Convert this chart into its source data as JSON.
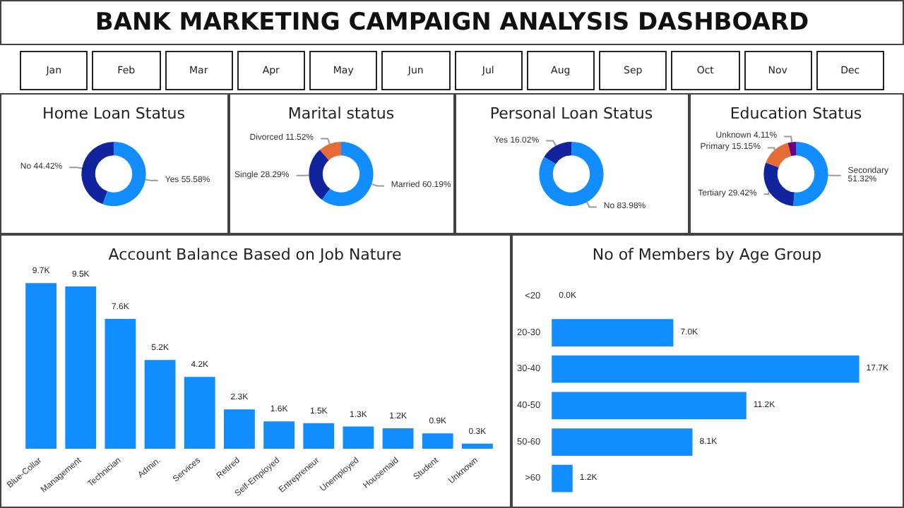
{
  "chart_data": [
    {
      "type": "other",
      "title": "BANK MARKETING CAMPAIGN ANALYSIS DASHBOARD",
      "annotations": [
        "Jan",
        "Feb",
        "Mar",
        "Apr",
        "May",
        "Jun",
        "Jul",
        "Aug",
        "Sep",
        "Oct",
        "Nov",
        "Dec"
      ]
    },
    {
      "type": "donut",
      "title": "Home Loan Status",
      "categories": [
        "Yes",
        "No"
      ],
      "values": [
        55.58,
        44.42
      ],
      "colors": [
        "#118dff",
        "#12239e"
      ],
      "value_labels": [
        "55.58%",
        "44.42%"
      ]
    },
    {
      "type": "donut",
      "title": "Marital status",
      "categories": [
        "Married",
        "Single",
        "Divorced"
      ],
      "values": [
        60.19,
        28.29,
        11.52
      ],
      "colors": [
        "#118dff",
        "#12239e",
        "#e66c37"
      ],
      "value_labels": [
        "60.19%",
        "28.29%",
        "11.52%"
      ]
    },
    {
      "type": "donut",
      "title": "Personal Loan Status",
      "categories": [
        "No",
        "Yes"
      ],
      "values": [
        83.98,
        16.02
      ],
      "colors": [
        "#118dff",
        "#12239e"
      ],
      "value_labels": [
        "83.98%",
        "16.02%"
      ]
    },
    {
      "type": "donut",
      "title": "Education Status",
      "categories": [
        "Secondary",
        "Tertiary",
        "Primary",
        "Unknown"
      ],
      "values": [
        51.32,
        29.42,
        15.15,
        4.11
      ],
      "colors": [
        "#118dff",
        "#12239e",
        "#e66c37",
        "#6b007b"
      ],
      "value_labels": [
        "51.32%",
        "29.42%",
        "15.15%",
        "4.11%"
      ]
    },
    {
      "type": "bar",
      "title": "Account Balance Based on Job Nature",
      "categories": [
        "Blue-Collar",
        "Management",
        "Technician",
        "Admin.",
        "Services",
        "Retired",
        "Self-Employed",
        "Entrepreneur",
        "Unemployed",
        "Housemaid",
        "Student",
        "Unknown"
      ],
      "values": [
        9700,
        9500,
        7600,
        5200,
        4200,
        2300,
        1600,
        1500,
        1300,
        1200,
        900,
        300
      ],
      "value_labels": [
        "9.7K",
        "9.5K",
        "7.6K",
        "5.2K",
        "4.2K",
        "2.3K",
        "1.6K",
        "1.5K",
        "1.3K",
        "1.2K",
        "0.9K",
        "0.3K"
      ],
      "color": "#118dff"
    },
    {
      "type": "bar",
      "orientation": "horizontal",
      "title": "No of Members by Age Group",
      "categories": [
        "<20",
        "20-30",
        "30-40",
        "40-50",
        "50-60",
        ">60"
      ],
      "values": [
        0,
        7000,
        17700,
        11200,
        8100,
        1200
      ],
      "value_labels": [
        "0.0K",
        "7.0K",
        "17.7K",
        "11.2K",
        "8.1K",
        "1.2K"
      ],
      "color": "#118dff"
    }
  ]
}
